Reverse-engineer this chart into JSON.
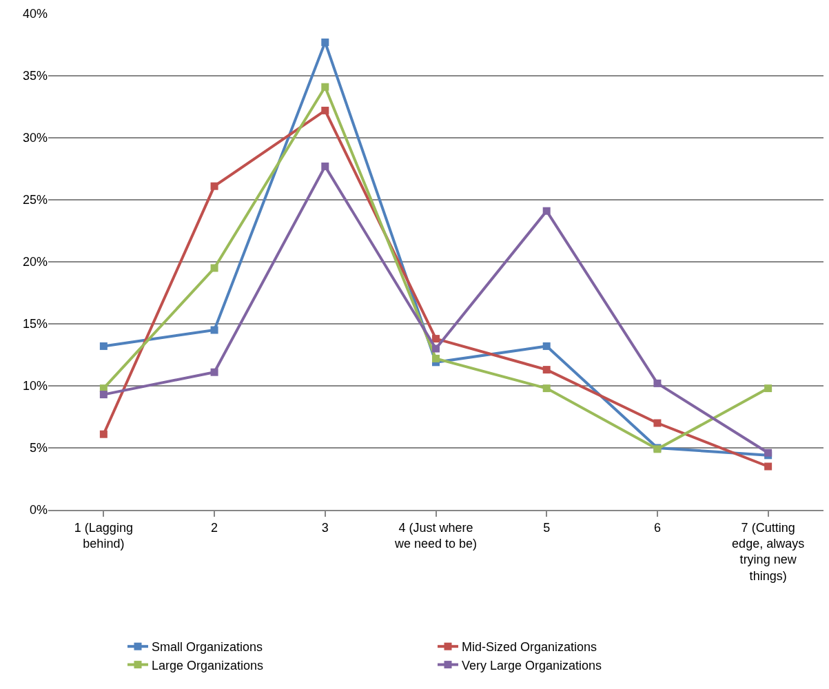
{
  "chart_data": {
    "type": "line",
    "categories": [
      "1 (Lagging behind)",
      "2",
      "3",
      "4 (Just where we need to be)",
      "5",
      "6",
      "7 (Cutting edge, always trying new things)"
    ],
    "series": [
      {
        "name": "Small Organizations",
        "color": "#4f81bd",
        "values": [
          13.2,
          14.5,
          37.7,
          11.9,
          13.2,
          5.0,
          4.4
        ]
      },
      {
        "name": "Mid-Sized Organizations",
        "color": "#c0504d",
        "values": [
          6.1,
          26.1,
          32.2,
          13.8,
          11.3,
          7.0,
          3.5
        ]
      },
      {
        "name": "Large Organizations",
        "color": "#9bbb59",
        "values": [
          9.8,
          19.5,
          34.1,
          12.2,
          9.8,
          4.9,
          9.8
        ]
      },
      {
        "name": "Very Large Organizations",
        "color": "#8064a2",
        "values": [
          9.3,
          11.1,
          27.7,
          13.0,
          24.1,
          10.2,
          4.6
        ]
      }
    ],
    "ylim": [
      0,
      40
    ],
    "yticks": [
      {
        "value": 0,
        "label": "0%"
      },
      {
        "value": 5,
        "label": "5%"
      },
      {
        "value": 10,
        "label": "10%"
      },
      {
        "value": 15,
        "label": "15%"
      },
      {
        "value": 20,
        "label": "20%"
      },
      {
        "value": 25,
        "label": "25%"
      },
      {
        "value": 30,
        "label": "30%"
      },
      {
        "value": 35,
        "label": "35%"
      },
      {
        "value": 40,
        "label": "40%"
      }
    ],
    "grid": "y",
    "legend": "bottom",
    "marker": "square",
    "line_style": "solid"
  }
}
